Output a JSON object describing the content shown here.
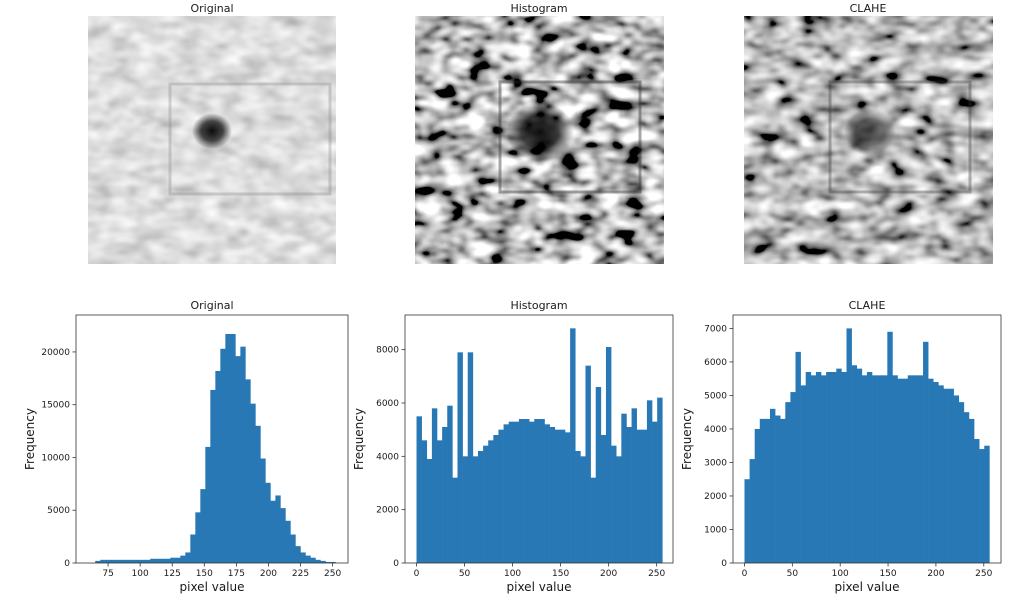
{
  "image_titles": [
    "Original",
    "Histogram",
    "CLAHE"
  ],
  "image_panels": [
    {
      "title": "Original",
      "contrast": "low",
      "mean_gray": 0.72
    },
    {
      "title": "Histogram",
      "contrast": "high",
      "mean_gray": 0.55
    },
    {
      "title": "CLAHE",
      "contrast": "medium-high",
      "mean_gray": 0.55
    }
  ],
  "colors": {
    "bar": "#2878b5",
    "axis": "#333333",
    "background": "#ffffff"
  },
  "chart_data": [
    {
      "type": "bar",
      "title": "Original",
      "xlabel": "pixel value",
      "ylabel": "Frequency",
      "xlim": [
        50,
        262
      ],
      "ylim": [
        0,
        23500
      ],
      "xticks": [
        75,
        100,
        125,
        150,
        175,
        200,
        225,
        250
      ],
      "yticks": [
        0,
        5000,
        10000,
        15000,
        20000
      ],
      "bin_start": 65,
      "bin_width": 3.9,
      "values": [
        200,
        300,
        300,
        300,
        300,
        300,
        300,
        300,
        300,
        300,
        300,
        400,
        400,
        400,
        400,
        500,
        500,
        700,
        1000,
        2700,
        4800,
        7000,
        11000,
        16400,
        18200,
        20300,
        21700,
        21700,
        19600,
        20500,
        17400,
        15100,
        13000,
        9900,
        7600,
        5900,
        6400,
        5200,
        4000,
        2700,
        1600,
        1000,
        700,
        500,
        300,
        200,
        100,
        100
      ]
    },
    {
      "type": "bar",
      "title": "Histogram",
      "xlabel": "pixel value",
      "ylabel": "Frequency",
      "xlim": [
        -12,
        267
      ],
      "ylim": [
        0,
        9300
      ],
      "xticks": [
        0,
        50,
        100,
        150,
        200,
        250
      ],
      "yticks": [
        0,
        2000,
        4000,
        6000,
        8000
      ],
      "bin_start": 0,
      "bin_width": 5.33,
      "values": [
        5500,
        4600,
        3900,
        5800,
        4600,
        5100,
        5900,
        3200,
        7900,
        4000,
        7900,
        4000,
        4200,
        4400,
        4600,
        4800,
        5000,
        5200,
        5300,
        5300,
        5400,
        5400,
        5300,
        5400,
        5400,
        5200,
        5100,
        5000,
        5000,
        4900,
        8800,
        4200,
        4000,
        7400,
        3200,
        6600,
        4800,
        8100,
        4400,
        4000,
        5600,
        5100,
        5800,
        5000,
        5000,
        6100,
        5300,
        6200
      ]
    },
    {
      "type": "bar",
      "title": "CLAHE",
      "xlabel": "pixel value",
      "ylabel": "Frequency",
      "xlim": [
        -12,
        268
      ],
      "ylim": [
        0,
        7400
      ],
      "xticks": [
        0,
        50,
        100,
        150,
        200,
        250
      ],
      "yticks": [
        0,
        1000,
        2000,
        3000,
        4000,
        5000,
        6000,
        7000
      ],
      "bin_start": 0,
      "bin_width": 5.33,
      "values": [
        2500,
        3100,
        4000,
        4300,
        4300,
        4600,
        4400,
        4300,
        4800,
        5100,
        6300,
        5300,
        5700,
        5600,
        5700,
        5600,
        5700,
        5700,
        5800,
        5700,
        7000,
        5900,
        5800,
        5600,
        5700,
        5600,
        5600,
        5600,
        6900,
        5600,
        5500,
        5500,
        5600,
        5600,
        5600,
        6600,
        5500,
        5400,
        5300,
        5200,
        5200,
        5000,
        4800,
        4500,
        4300,
        3700,
        3400,
        3500
      ]
    }
  ]
}
